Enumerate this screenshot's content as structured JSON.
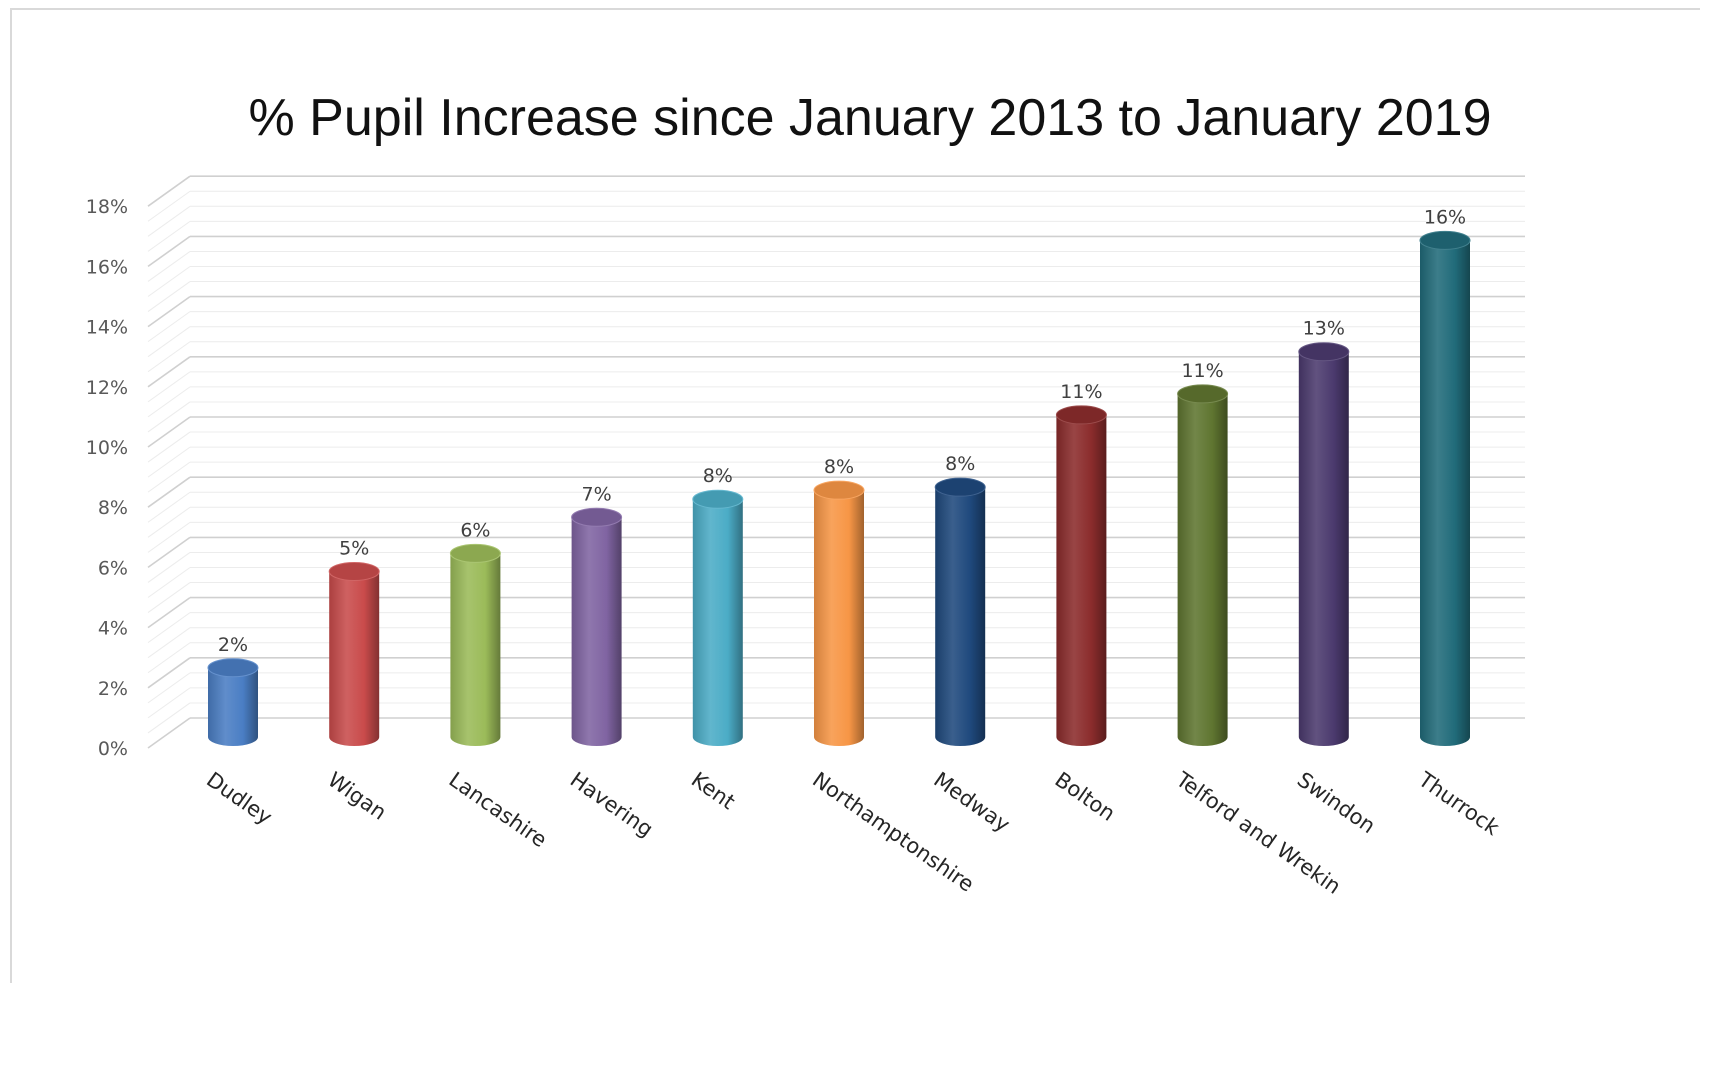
{
  "chart_data": {
    "type": "bar",
    "style": "3d-cylinder",
    "title": "% Pupil Increase since January 2013 to January 2019",
    "xlabel": "",
    "ylabel": "",
    "ylim": [
      0,
      18
    ],
    "y_ticks": [
      "0%",
      "2%",
      "4%",
      "6%",
      "8%",
      "10%",
      "12%",
      "14%",
      "16%",
      "18%"
    ],
    "grid": true,
    "legend": "none",
    "categories": [
      "Dudley",
      "Wigan",
      "Lancashire",
      "Havering",
      "Kent",
      "Northamptonshire",
      "Medway",
      "Bolton",
      "Telford and Wrekin",
      "Swindon",
      "Thurrock"
    ],
    "values": [
      2.3,
      5.5,
      6.1,
      7.3,
      7.9,
      8.2,
      8.3,
      10.7,
      11.4,
      12.8,
      16.5
    ],
    "data_labels": [
      "2%",
      "5%",
      "6%",
      "7%",
      "8%",
      "8%",
      "8%",
      "11%",
      "11%",
      "13%",
      "16%"
    ],
    "colors": [
      "#4A7EC4",
      "#C94B4B",
      "#9BBB59",
      "#8064A2",
      "#4BACC6",
      "#F79646",
      "#1F497D",
      "#8B2C2C",
      "#5F7530",
      "#4B3A6E",
      "#216B7A"
    ]
  }
}
